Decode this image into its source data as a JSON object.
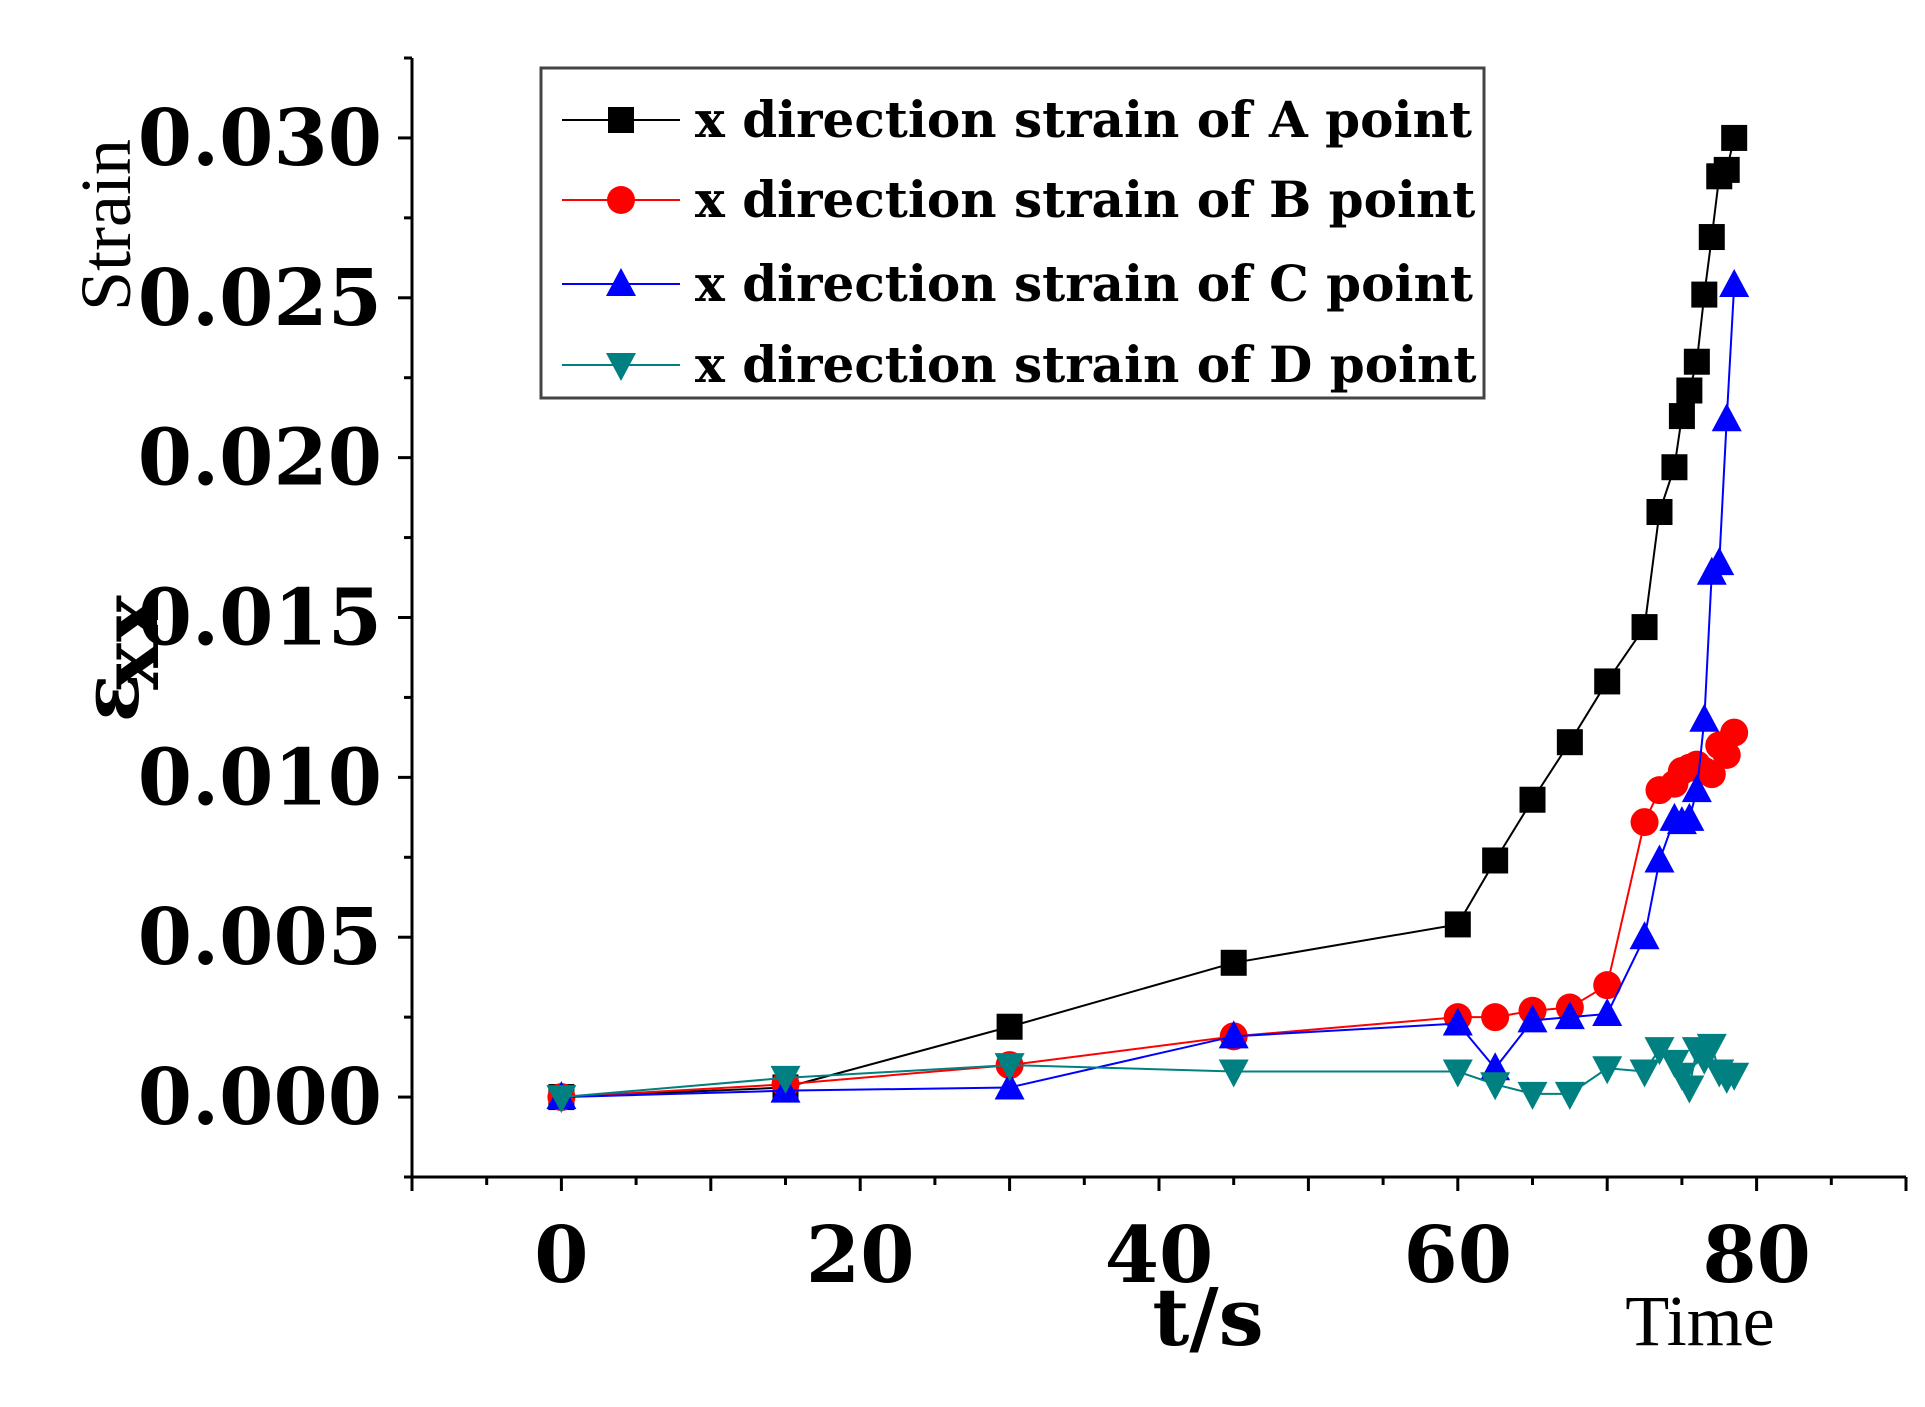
{
  "chart_data": {
    "type": "line",
    "title": "",
    "xlabel": "t/s",
    "ylabel_symbol": "ε",
    "ylabel_subscript": "xx",
    "y_side_label": "Strain",
    "x_side_label": "Time",
    "xlim": [
      -10,
      90
    ],
    "ylim": [
      -0.0025,
      0.0325
    ],
    "x_ticks": [
      0,
      20,
      40,
      60,
      80
    ],
    "y_ticks": [
      0.0,
      0.005,
      0.01,
      0.015,
      0.02,
      0.025,
      0.03
    ],
    "x_tick_labels": [
      "0",
      "20",
      "40",
      "60",
      "80"
    ],
    "y_tick_labels": [
      "0.000",
      "0.005",
      "0.010",
      "0.015",
      "0.020",
      "0.025",
      "0.030"
    ],
    "legend_position": "top-left",
    "series": [
      {
        "name": "x direction strain of A point",
        "color": "#000000",
        "marker": "square",
        "points": [
          [
            0,
            0.0
          ],
          [
            15,
            0.0003
          ],
          [
            30,
            0.0022
          ],
          [
            45,
            0.0042
          ],
          [
            60,
            0.0054
          ],
          [
            62.5,
            0.0074
          ],
          [
            65,
            0.0093
          ],
          [
            67.5,
            0.0111
          ],
          [
            70,
            0.013
          ],
          [
            72.5,
            0.0147
          ],
          [
            73.5,
            0.0183
          ],
          [
            74.5,
            0.0197
          ],
          [
            75,
            0.0213
          ],
          [
            75.5,
            0.0221
          ],
          [
            76,
            0.023
          ],
          [
            76.5,
            0.0251
          ],
          [
            77,
            0.0269
          ],
          [
            77.5,
            0.0288
          ],
          [
            78,
            0.029
          ],
          [
            78.5,
            0.03
          ]
        ]
      },
      {
        "name": "x direction strain of B point",
        "color": "#ff0000",
        "marker": "circle",
        "points": [
          [
            0,
            0.0
          ],
          [
            15,
            0.0004
          ],
          [
            30,
            0.001
          ],
          [
            45,
            0.0019
          ],
          [
            60,
            0.0025
          ],
          [
            62.5,
            0.0025
          ],
          [
            65,
            0.0027
          ],
          [
            67.5,
            0.0028
          ],
          [
            70,
            0.0035
          ],
          [
            72.5,
            0.0086
          ],
          [
            73.5,
            0.0096
          ],
          [
            74.5,
            0.0098
          ],
          [
            75,
            0.0102
          ],
          [
            75.5,
            0.0103
          ],
          [
            76,
            0.0104
          ],
          [
            76.5,
            0.0102
          ],
          [
            77,
            0.0101
          ],
          [
            77.5,
            0.011
          ],
          [
            78,
            0.0107
          ],
          [
            78.5,
            0.0114
          ]
        ]
      },
      {
        "name": "x direction strain of C point",
        "color": "#0000ff",
        "marker": "triangle-up",
        "points": [
          [
            0,
            0.0
          ],
          [
            15,
            0.0002
          ],
          [
            30,
            0.0003
          ],
          [
            45,
            0.0019
          ],
          [
            60,
            0.0023
          ],
          [
            62.5,
            0.0009
          ],
          [
            65,
            0.0024
          ],
          [
            67.5,
            0.0025
          ],
          [
            70,
            0.0026
          ],
          [
            72.5,
            0.005
          ],
          [
            73.5,
            0.0074
          ],
          [
            74.5,
            0.0087
          ],
          [
            75,
            0.0086
          ],
          [
            75.5,
            0.0087
          ],
          [
            76,
            0.0096
          ],
          [
            76.5,
            0.0118
          ],
          [
            77,
            0.0164
          ],
          [
            77.5,
            0.0167
          ],
          [
            78,
            0.0212
          ],
          [
            78.5,
            0.0254
          ]
        ]
      },
      {
        "name": "x direction strain of D point",
        "color": "#008080",
        "marker": "triangle-down",
        "points": [
          [
            0,
            0.0
          ],
          [
            15,
            0.0006
          ],
          [
            30,
            0.001
          ],
          [
            45,
            0.0008
          ],
          [
            60,
            0.0008
          ],
          [
            62.5,
            0.0004
          ],
          [
            65,
            0.0001
          ],
          [
            67.5,
            0.0001
          ],
          [
            70,
            0.0009
          ],
          [
            72.5,
            0.0008
          ],
          [
            73.5,
            0.0015
          ],
          [
            74.5,
            0.0011
          ],
          [
            75,
            0.0007
          ],
          [
            75.5,
            0.0003
          ],
          [
            76,
            0.0015
          ],
          [
            76.5,
            0.0012
          ],
          [
            77,
            0.0016
          ],
          [
            77.5,
            0.0008
          ],
          [
            78,
            0.0006
          ],
          [
            78.5,
            0.0007
          ]
        ]
      }
    ]
  }
}
